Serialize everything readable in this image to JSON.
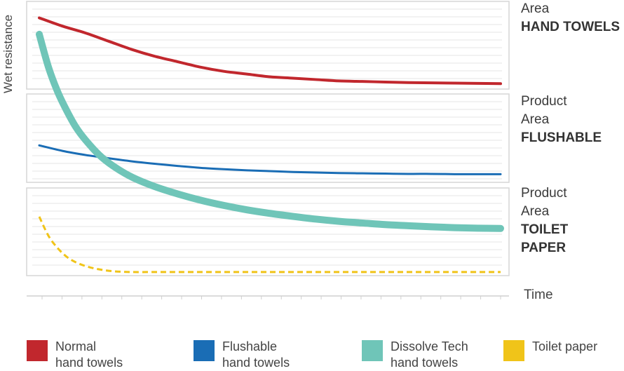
{
  "chart_data": {
    "type": "line",
    "ylabel": "Wet resistance",
    "xlabel": "Time",
    "x_tick_count": 24,
    "zones": [
      {
        "line1": "",
        "line2": "Area",
        "bold": "HAND TOWELS"
      },
      {
        "line1": "Product",
        "line2": "Area",
        "bold": "FLUSHABLE"
      },
      {
        "line1": "Product",
        "line2": "Area",
        "bold": "TOILET\nPAPER"
      }
    ],
    "series": [
      {
        "name": "Normal\nhand towels",
        "color": "#c1272d",
        "style": "solid",
        "width": 4,
        "x": [
          0,
          5,
          10,
          15,
          20,
          25,
          30,
          35,
          40,
          45,
          50,
          55,
          60,
          65,
          70,
          75,
          80,
          85,
          90,
          95,
          100
        ],
        "y": [
          94,
          91,
          88.5,
          85.5,
          82.5,
          80,
          78,
          76,
          74.5,
          73.5,
          72.5,
          72,
          71.5,
          71,
          70.8,
          70.6,
          70.4,
          70.3,
          70.2,
          70.1,
          70
        ]
      },
      {
        "name": "Flushable\nhand towels",
        "color": "#1a6db5",
        "style": "solid",
        "width": 3,
        "x": [
          0,
          5,
          10,
          15,
          20,
          25,
          30,
          35,
          40,
          45,
          50,
          55,
          60,
          65,
          70,
          75,
          80,
          85,
          90,
          95,
          100
        ],
        "y": [
          47.5,
          45.5,
          44,
          42.8,
          41.7,
          40.8,
          40,
          39.3,
          38.8,
          38.4,
          38.1,
          37.8,
          37.6,
          37.4,
          37.3,
          37.2,
          37.1,
          37.1,
          37,
          37,
          37
        ]
      },
      {
        "name": "Dissolve Tech\nhand towels",
        "color": "#6fc5b8",
        "style": "solid",
        "width": 10,
        "x": [
          0,
          2,
          4,
          6,
          8,
          10,
          13,
          16,
          20,
          25,
          30,
          35,
          40,
          45,
          50,
          55,
          60,
          65,
          70,
          75,
          80,
          85,
          90,
          95,
          100
        ],
        "y": [
          88,
          76,
          67,
          60,
          54,
          49.5,
          44,
          40,
          36,
          32.5,
          29.8,
          27.5,
          25.6,
          24,
          22.7,
          21.6,
          20.6,
          19.8,
          19.2,
          18.6,
          18.2,
          17.8,
          17.5,
          17.3,
          17.2
        ]
      },
      {
        "name": "Toilet paper",
        "color": "#f0c419",
        "style": "dashed",
        "width": 3,
        "x": [
          0,
          2,
          4,
          6,
          8,
          10,
          12,
          14,
          16,
          18,
          20,
          25,
          30,
          40,
          50,
          60,
          70,
          80,
          90,
          100
        ],
        "y": [
          21.5,
          14.5,
          10,
          6.8,
          4.8,
          3.5,
          2.6,
          2,
          1.6,
          1.4,
          1.3,
          1.3,
          1.3,
          1.3,
          1.3,
          1.3,
          1.3,
          1.3,
          1.3,
          1.3
        ]
      }
    ]
  }
}
